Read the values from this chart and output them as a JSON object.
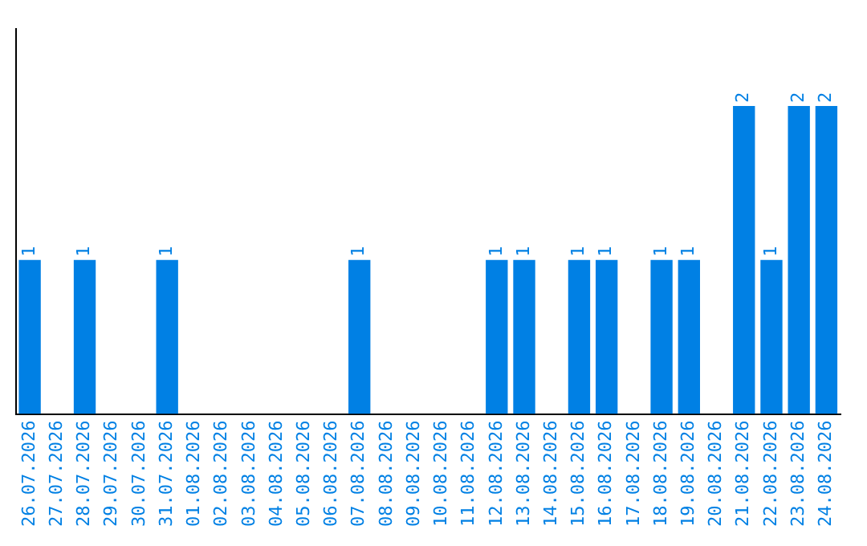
{
  "chart_data": {
    "type": "bar",
    "categories": [
      "26.07.2026",
      "27.07.2026",
      "28.07.2026",
      "29.07.2026",
      "30.07.2026",
      "31.07.2026",
      "01.08.2026",
      "02.08.2026",
      "03.08.2026",
      "04.08.2026",
      "05.08.2026",
      "06.08.2026",
      "07.08.2026",
      "08.08.2026",
      "09.08.2026",
      "10.08.2026",
      "11.08.2026",
      "12.08.2026",
      "13.08.2026",
      "14.08.2026",
      "15.08.2026",
      "16.08.2026",
      "17.08.2026",
      "18.08.2026",
      "19.08.2026",
      "20.08.2026",
      "21.08.2026",
      "22.08.2026",
      "23.08.2026",
      "24.08.2026"
    ],
    "values": [
      1,
      0,
      1,
      0,
      0,
      1,
      0,
      0,
      0,
      0,
      0,
      0,
      1,
      0,
      0,
      0,
      0,
      1,
      1,
      0,
      1,
      1,
      0,
      1,
      1,
      0,
      2,
      1,
      2,
      2
    ],
    "value_labels": [
      "1",
      null,
      "1",
      null,
      null,
      "1",
      null,
      null,
      null,
      null,
      null,
      null,
      "1",
      null,
      null,
      null,
      null,
      "1",
      "1",
      null,
      "1",
      "1",
      null,
      "1",
      "1",
      null,
      "2",
      "1",
      "2",
      "2"
    ],
    "color": "#0080e4",
    "grid": false,
    "legend": false,
    "tick_labels": "x"
  }
}
